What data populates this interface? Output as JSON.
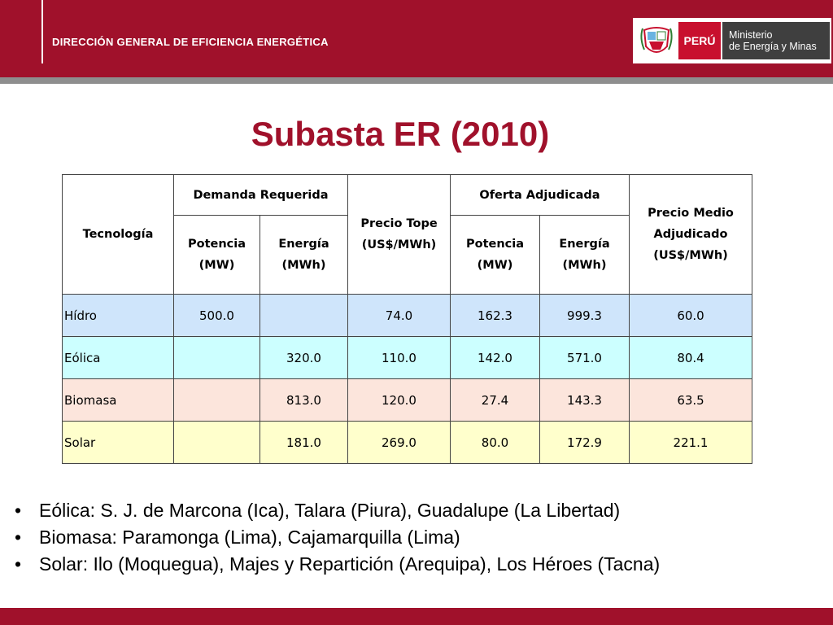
{
  "header": {
    "title": "DIRECCIÓN GENERAL DE EFICIENCIA ENERGÉTICA",
    "logo": {
      "country": "PERÚ",
      "ministry_line1": "Ministerio",
      "ministry_line2": "de Energía y Minas"
    }
  },
  "colors": {
    "brand_red": "#a0112b",
    "band_gray": "#8e8e8e",
    "hidro": "#cfe5fb",
    "eolica": "#ccffff",
    "biomasa": "#fce5dc",
    "solar": "#ffffcc"
  },
  "slide": {
    "title": "Subasta ER (2010)"
  },
  "table": {
    "headers": {
      "tecnologia": "Tecnología",
      "demanda": "Demanda Requerida",
      "precio_tope": "Precio Tope (US$/MWh)",
      "oferta": "Oferta Adjudicada",
      "precio_medio": "Precio Medio Adjudicado (US$/MWh)",
      "potencia": "Potencia (MW)",
      "energia": "Energía (MWh)"
    },
    "rows": [
      [
        "Hídro",
        "500.0",
        "",
        "74.0",
        "162.3",
        "999.3",
        "60.0"
      ],
      [
        "Eólica",
        "",
        "320.0",
        "110.0",
        "142.0",
        "571.0",
        "80.4"
      ],
      [
        "Biomasa",
        "",
        "813.0",
        "120.0",
        "27.4",
        "143.3",
        "63.5"
      ],
      [
        "Solar",
        "",
        "181.0",
        "269.0",
        "80.0",
        "172.9",
        "221.1"
      ]
    ]
  },
  "notes": {
    "bullet": "•",
    "items": [
      "Eólica: S. J. de Marcona (Ica), Talara (Piura), Guadalupe (La Libertad)",
      "Biomasa: Paramonga (Lima), Cajamarquilla (Lima)",
      "Solar: Ilo (Moquegua), Majes y Repartición (Arequipa), Los Héroes (Tacna)"
    ]
  }
}
